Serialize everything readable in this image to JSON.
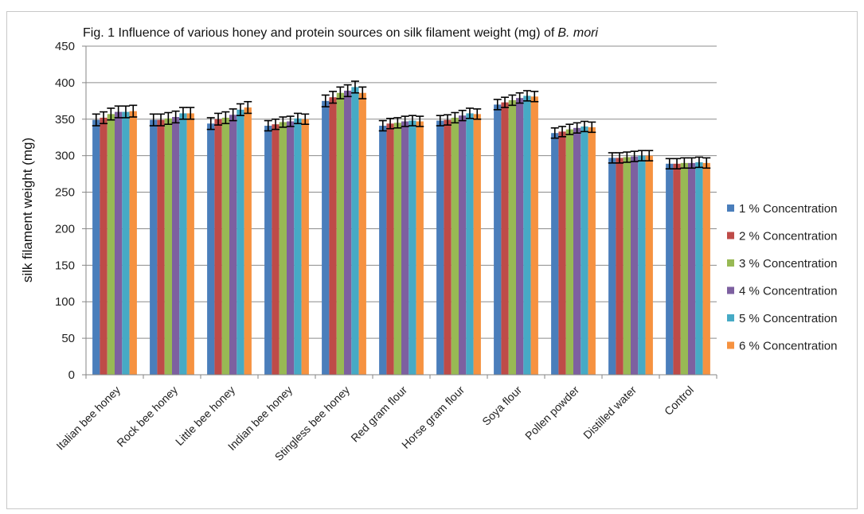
{
  "chart_data": {
    "type": "bar",
    "title": "Fig. 1 Influence of various honey and protein sources on silk filament weight (mg) of",
    "title_italic": "B. mori",
    "xlabel": "",
    "ylabel": "silk filament weight (mg)",
    "ylim": [
      0,
      450
    ],
    "yticks": [
      0,
      50,
      100,
      150,
      200,
      250,
      300,
      350,
      400,
      450
    ],
    "grid": true,
    "legend_position": "right",
    "error_bars": true,
    "categories": [
      "Italian bee honey",
      "Rock bee honey",
      "Little bee honey",
      "Indian bee honey",
      "Stingless bee honey",
      "Red gram flour",
      "Horse gram flour",
      "Soya flour",
      "Pollen powder",
      "Distilled water",
      "Control"
    ],
    "series": [
      {
        "name": "1 % Concentration",
        "color": "#4a7ebb",
        "values": [
          349,
          349,
          344,
          341,
          375,
          341,
          348,
          370,
          331,
          297,
          289
        ],
        "errors": [
          8,
          8,
          8,
          7,
          8,
          7,
          7,
          7,
          7,
          7,
          7
        ]
      },
      {
        "name": "2 % Concentration",
        "color": "#be4b48",
        "values": [
          352,
          349,
          350,
          343,
          380,
          344,
          349,
          373,
          333,
          297,
          289
        ],
        "errors": [
          8,
          8,
          8,
          7,
          8,
          7,
          7,
          7,
          7,
          7,
          7
        ]
      },
      {
        "name": "3 % Concentration",
        "color": "#98b954",
        "values": [
          357,
          351,
          352,
          346,
          386,
          345,
          352,
          376,
          336,
          298,
          290
        ],
        "errors": [
          8,
          8,
          8,
          7,
          8,
          7,
          7,
          7,
          7,
          7,
          7
        ]
      },
      {
        "name": "4 % Concentration",
        "color": "#7d60a0",
        "values": [
          360,
          353,
          356,
          347,
          389,
          347,
          355,
          379,
          338,
          299,
          290
        ],
        "errors": [
          8,
          8,
          8,
          7,
          8,
          7,
          7,
          7,
          7,
          7,
          7
        ]
      },
      {
        "name": "5 % Concentration",
        "color": "#46aac5",
        "values": [
          360,
          358,
          363,
          351,
          394,
          348,
          358,
          382,
          340,
          300,
          291
        ],
        "errors": [
          8,
          8,
          8,
          7,
          8,
          7,
          7,
          7,
          7,
          7,
          7
        ]
      },
      {
        "name": "6 % Concentration",
        "color": "#f69240",
        "values": [
          361,
          358,
          366,
          350,
          386,
          347,
          357,
          381,
          339,
          300,
          290
        ],
        "errors": [
          8,
          8,
          8,
          7,
          8,
          7,
          7,
          7,
          7,
          7,
          7
        ]
      }
    ]
  }
}
